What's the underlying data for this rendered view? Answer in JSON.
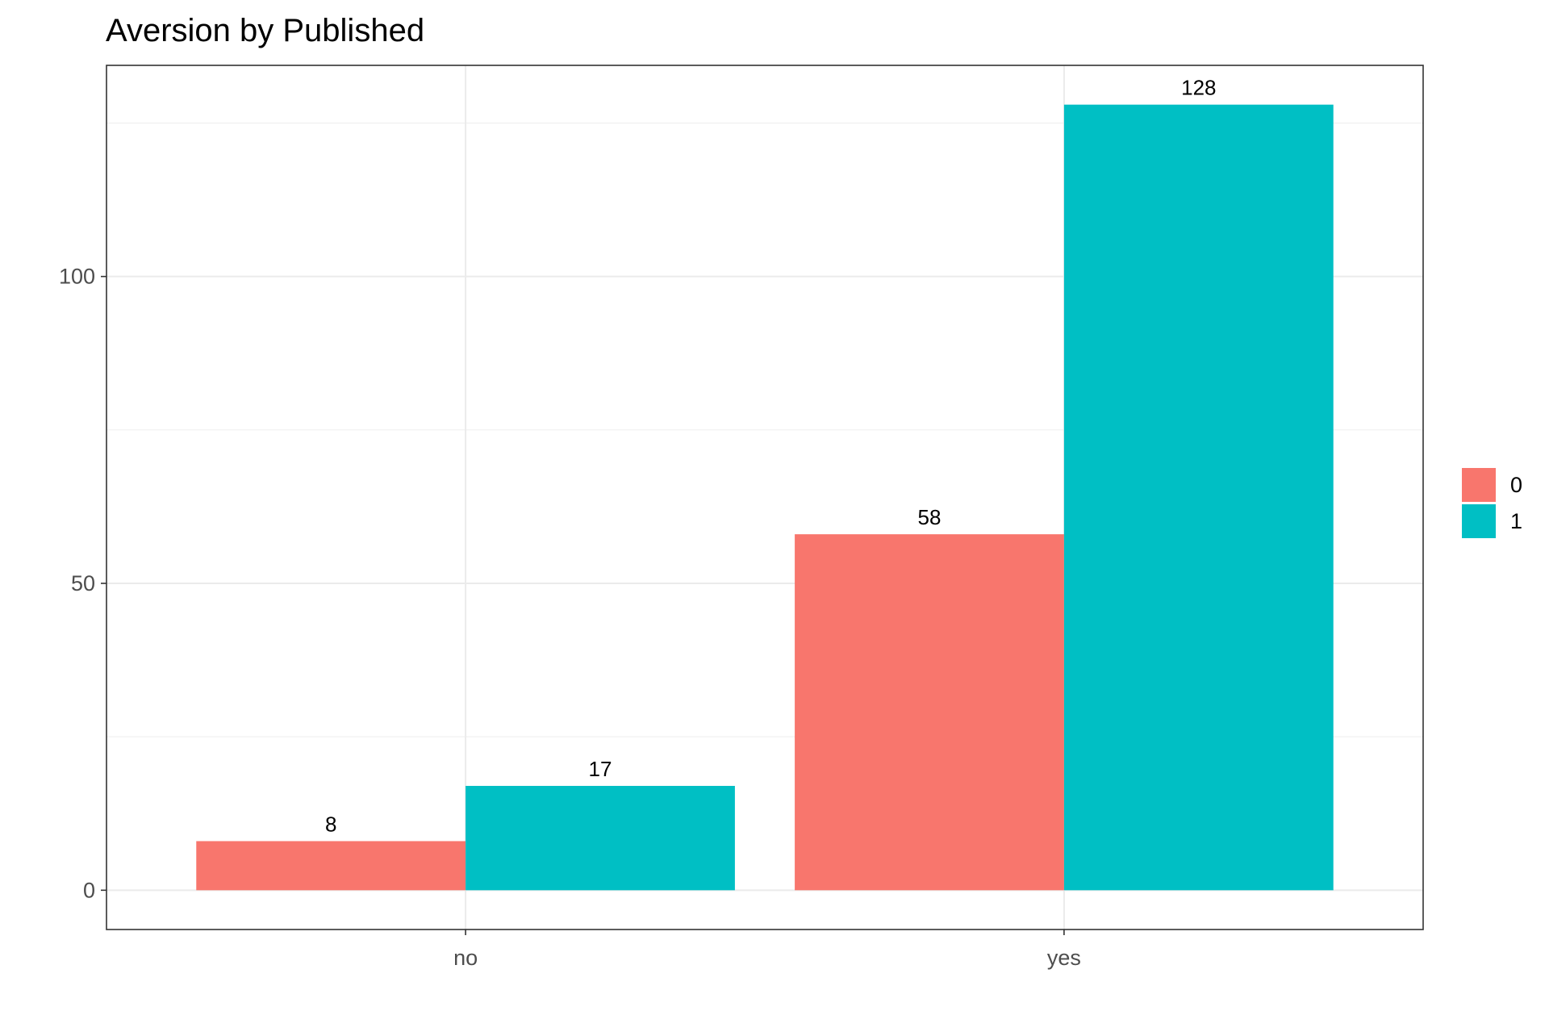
{
  "chart_data": {
    "type": "bar",
    "title": "Aversion by Published",
    "xlabel": "",
    "ylabel": "",
    "categories": [
      "no",
      "yes"
    ],
    "series": [
      {
        "name": "0",
        "values": [
          8,
          58
        ],
        "color": "#F8766D"
      },
      {
        "name": "1",
        "values": [
          17,
          128
        ],
        "color": "#00BFC4"
      }
    ],
    "y_ticks": [
      0,
      50,
      100
    ],
    "ylim": [
      -6.4,
      134.4
    ],
    "grid": true,
    "legend_position": "right",
    "show_data_labels": true
  }
}
